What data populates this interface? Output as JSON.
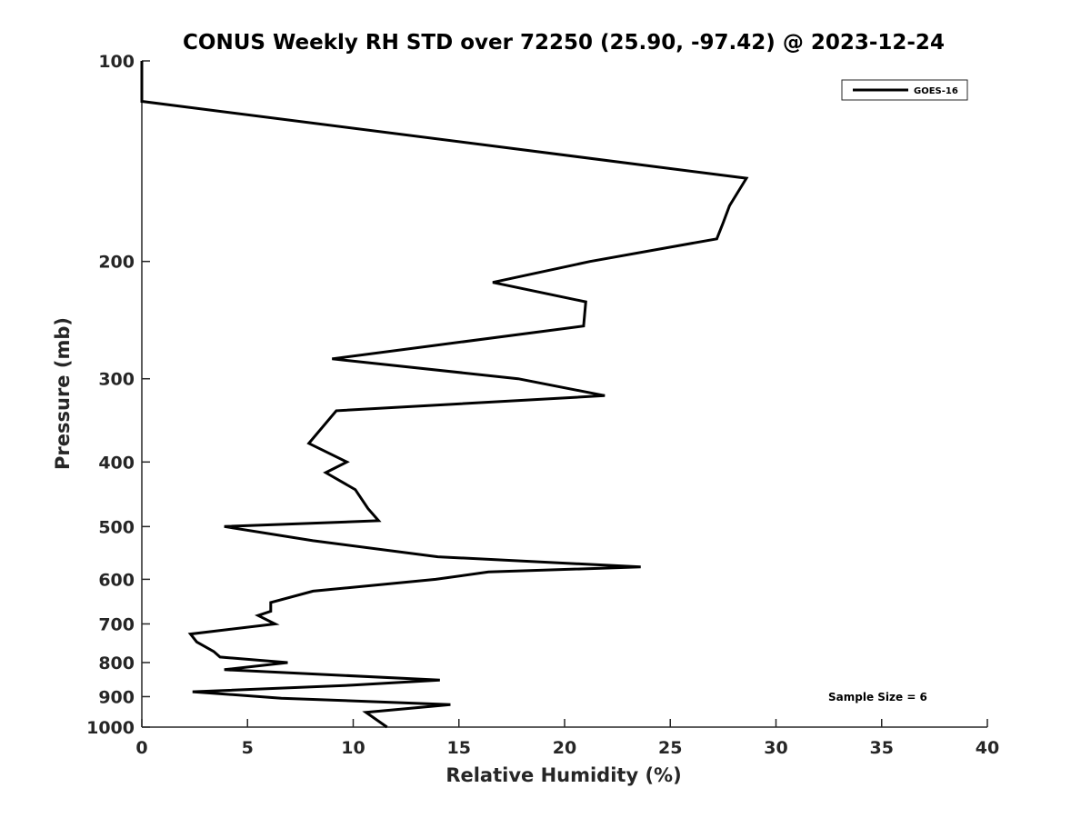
{
  "chart_data": {
    "type": "line",
    "title": "CONUS Weekly RH STD over 72250 (25.90, -97.42) @ 2023-12-24",
    "xlabel": "Relative Humidity (%)",
    "ylabel": "Pressure (mb)",
    "xlim": [
      0,
      40
    ],
    "ylim": [
      100,
      1000
    ],
    "y_scale": "log",
    "y_reversed": true,
    "grid": false,
    "x_ticks": [
      0,
      5,
      10,
      15,
      20,
      25,
      30,
      35,
      40
    ],
    "y_ticks": [
      100,
      200,
      300,
      400,
      500,
      600,
      700,
      800,
      900,
      1000
    ],
    "legend": {
      "placement": "top-right",
      "entries": [
        "GOES-16"
      ]
    },
    "annotation": "Sample Size = 6",
    "series": [
      {
        "name": "GOES-16",
        "color": "#000000",
        "points": [
          [
            0.0,
            100
          ],
          [
            0.0,
            115
          ],
          [
            28.6,
            150
          ],
          [
            27.8,
            165
          ],
          [
            27.5,
            175
          ],
          [
            27.2,
            185
          ],
          [
            21.2,
            200
          ],
          [
            16.6,
            215
          ],
          [
            21.0,
            230
          ],
          [
            20.9,
            250
          ],
          [
            9.0,
            280
          ],
          [
            17.8,
            300
          ],
          [
            21.9,
            318
          ],
          [
            9.2,
            335
          ],
          [
            7.9,
            375
          ],
          [
            9.7,
            400
          ],
          [
            8.7,
            415
          ],
          [
            10.1,
            440
          ],
          [
            10.7,
            470
          ],
          [
            11.2,
            490
          ],
          [
            3.9,
            500
          ],
          [
            8.1,
            525
          ],
          [
            14.0,
            555
          ],
          [
            23.6,
            575
          ],
          [
            16.4,
            585
          ],
          [
            13.9,
            600
          ],
          [
            8.1,
            625
          ],
          [
            6.1,
            650
          ],
          [
            6.1,
            670
          ],
          [
            5.5,
            680
          ],
          [
            6.3,
            700
          ],
          [
            2.3,
            725
          ],
          [
            2.6,
            745
          ],
          [
            3.4,
            770
          ],
          [
            3.7,
            785
          ],
          [
            6.9,
            800
          ],
          [
            3.9,
            820
          ],
          [
            14.1,
            850
          ],
          [
            10.0,
            865
          ],
          [
            2.4,
            885
          ],
          [
            6.6,
            905
          ],
          [
            14.6,
            925
          ],
          [
            10.6,
            950
          ],
          [
            11.6,
            1000
          ]
        ]
      }
    ]
  }
}
